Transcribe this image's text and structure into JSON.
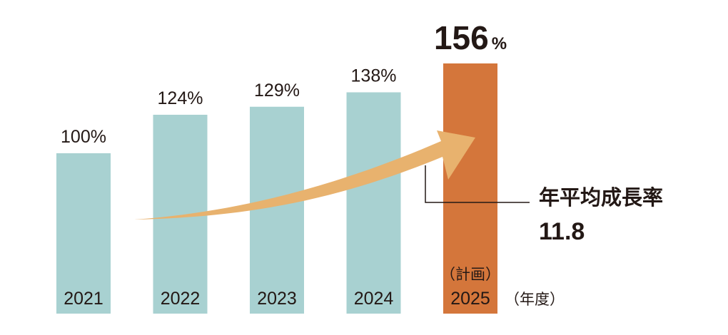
{
  "chart_data": {
    "type": "bar",
    "categories": [
      "2021",
      "2022",
      "2023",
      "2024",
      "2025"
    ],
    "values": [
      100,
      124,
      129,
      138,
      156
    ],
    "value_labels": [
      "100%",
      "124%",
      "129%",
      "138%",
      "156%"
    ],
    "unit_suffix": "%",
    "highlight_index": 4,
    "highlight_note": "（計画）",
    "x_unit_label": "（年度）",
    "annotation": {
      "label": "年平均成長率",
      "value": "11.8"
    },
    "ylim": [
      0,
      170
    ],
    "colors": {
      "bar": "#a8d1d1",
      "highlight": "#d4763b",
      "arrow": "#e8b26e",
      "text": "#231815"
    }
  }
}
